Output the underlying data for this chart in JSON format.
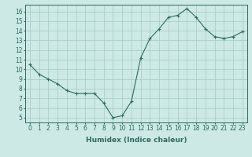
{
  "x": [
    0,
    1,
    2,
    3,
    4,
    5,
    6,
    7,
    8,
    9,
    10,
    11,
    12,
    13,
    14,
    15,
    16,
    17,
    18,
    19,
    20,
    21,
    22,
    23
  ],
  "y": [
    10.5,
    9.5,
    9.0,
    8.5,
    7.8,
    7.5,
    7.5,
    7.5,
    6.5,
    5.0,
    5.2,
    6.7,
    11.2,
    13.2,
    14.2,
    15.4,
    15.6,
    16.3,
    15.4,
    14.2,
    13.4,
    13.2,
    13.4,
    13.9
  ],
  "line_color": "#2e6b5e",
  "marker": "+",
  "marker_size": 3,
  "bg_color": "#cce9e5",
  "grid_color": "#aacfcb",
  "xlabel": "Humidex (Indice chaleur)",
  "xlim": [
    -0.5,
    23.5
  ],
  "ylim": [
    4.5,
    16.7
  ],
  "xticks": [
    0,
    1,
    2,
    3,
    4,
    5,
    6,
    7,
    8,
    9,
    10,
    11,
    12,
    13,
    14,
    15,
    16,
    17,
    18,
    19,
    20,
    21,
    22,
    23
  ],
  "yticks": [
    5,
    6,
    7,
    8,
    9,
    10,
    11,
    12,
    13,
    14,
    15,
    16
  ],
  "tick_fontsize": 5.5,
  "xlabel_fontsize": 6.5,
  "axis_color": "#2e6b5e",
  "spine_color": "#2e6b5e",
  "line_width": 0.8,
  "marker_edge_width": 0.8
}
